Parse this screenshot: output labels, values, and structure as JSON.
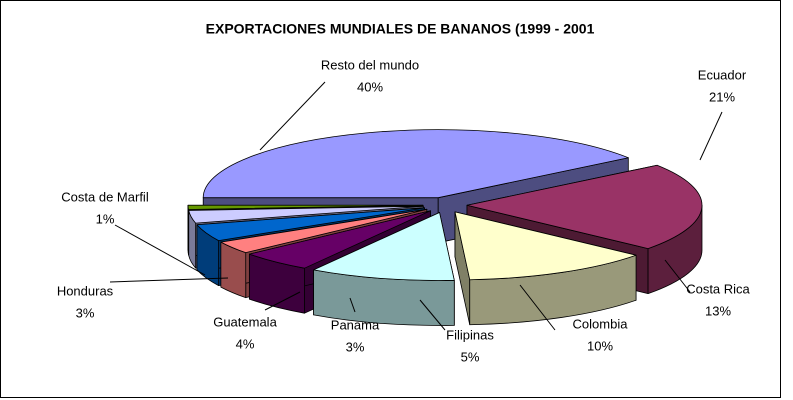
{
  "chart_data": {
    "type": "pie3d",
    "title": "EXPORTACIONES MUNDIALES DE BANANOS (1999 - 2001",
    "categories": [
      "Resto del mundo",
      "Ecuador",
      "Costa Rica",
      "Colombia",
      "Filipinas",
      "Panama",
      "Guatemala",
      "Honduras",
      "Costa de Marfil"
    ],
    "values": [
      40,
      21,
      13,
      10,
      5,
      3,
      4,
      3,
      1
    ],
    "value_labels": [
      "40%",
      "21%",
      "13%",
      "10%",
      "5%",
      "3%",
      "4%",
      "3%",
      "1%"
    ],
    "colors": [
      "#9999ff",
      "#993366",
      "#ffffcc",
      "#ccffff",
      "#660066",
      "#ff8080",
      "#0066cc",
      "#ccccff",
      "#669900"
    ]
  }
}
